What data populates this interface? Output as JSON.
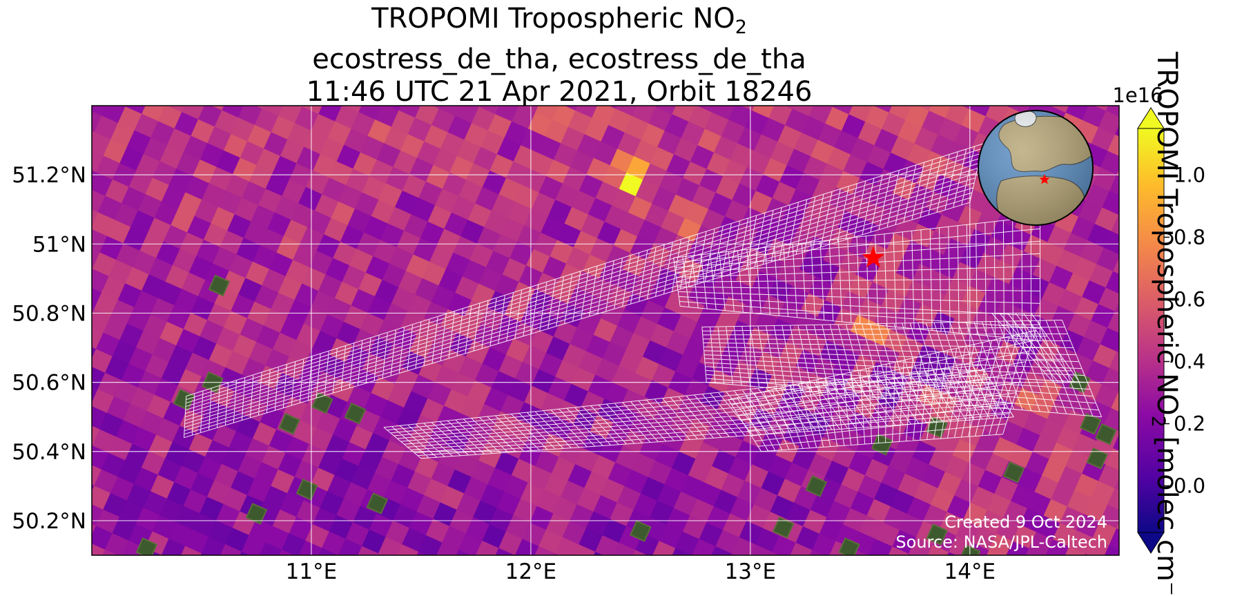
{
  "title": {
    "line1_prefix": "TROPOMI Tropospheric NO",
    "line1_subscript": "2",
    "line2": "ecostress_de_tha, ecostress_de_tha",
    "line3": "11:46 UTC 21 Apr 2021, Orbit 18246"
  },
  "map": {
    "lon_ticks": [
      {
        "value": 11,
        "label": "11°E"
      },
      {
        "value": 12,
        "label": "12°E"
      },
      {
        "value": 13,
        "label": "13°E"
      },
      {
        "value": 14,
        "label": "14°E"
      }
    ],
    "lat_ticks": [
      {
        "value": 51.2,
        "label": "51.2°N"
      },
      {
        "value": 51.0,
        "label": "51°N"
      },
      {
        "value": 50.8,
        "label": "50.8°N"
      },
      {
        "value": 50.6,
        "label": "50.6°N"
      },
      {
        "value": 50.4,
        "label": "50.4°N"
      },
      {
        "value": 50.2,
        "label": "50.2°N"
      }
    ],
    "lon_range": [
      10.0,
      14.68
    ],
    "lat_range": [
      50.1,
      51.4
    ],
    "gridlines": true,
    "site_marker": {
      "lon": 13.56,
      "lat": 50.96,
      "color": "#ff0000"
    },
    "credit_line1": "Created 9 Oct 2024",
    "credit_line2": "Source: NASA/JPL-Caltech",
    "inset_globe": "globe-inset-with-location-star"
  },
  "colorbar": {
    "colormap": "plasma",
    "min": -0.15,
    "max": 1.15,
    "extend": "both",
    "offset_label": "1e16",
    "ticks": [
      {
        "value": 0.0,
        "label": "0.0"
      },
      {
        "value": 0.2,
        "label": "0.2"
      },
      {
        "value": 0.4,
        "label": "0.4"
      },
      {
        "value": 0.6,
        "label": "0.6"
      },
      {
        "value": 0.8,
        "label": "0.8"
      },
      {
        "value": 1.0,
        "label": "1.0"
      }
    ],
    "label_prefix": "TROPOMI Tropospheric NO",
    "label_subscript": "2",
    "label_suffix": " [molec cm",
    "label_trailing": "⁻"
  },
  "colors": {
    "grid": "#ffffff",
    "footprint_outline": "#ffffff",
    "ocean": "#5b8fc4",
    "land": "#b8a878"
  }
}
